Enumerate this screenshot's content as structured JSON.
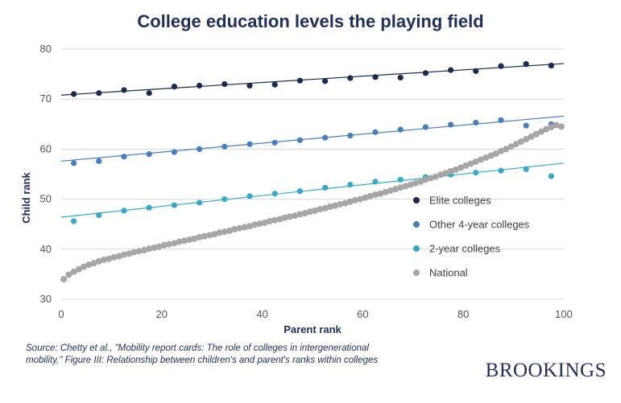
{
  "title": "College education levels the playing field",
  "source_text": "Source: Chetty et al., \"Mobility report cards: The role of colleges in intergenerational mobility,\" Figure III: Relationship between children's and parent's ranks within colleges",
  "brand": "BROOKINGS",
  "chart_data": {
    "type": "scatter",
    "title": "College education levels the playing field",
    "xlabel": "Parent rank",
    "ylabel": "Child rank",
    "xlim": [
      0,
      100
    ],
    "ylim": [
      30,
      80
    ],
    "xticks": [
      0,
      20,
      40,
      60,
      80,
      100
    ],
    "yticks": [
      30,
      40,
      50,
      60,
      70,
      80
    ],
    "grid": "horizontal",
    "legend_position": "right",
    "series": [
      {
        "name": "Elite colleges",
        "color": "#1b2a4e",
        "x": [
          2.5,
          7.5,
          12.5,
          17.5,
          22.5,
          27.5,
          32.5,
          37.5,
          42.5,
          47.5,
          52.5,
          57.5,
          62.5,
          67.5,
          72.5,
          77.5,
          82.5,
          87.5,
          92.5,
          97.5
        ],
        "y": [
          71.0,
          71.2,
          71.8,
          71.2,
          72.5,
          72.7,
          73.0,
          72.7,
          72.9,
          73.7,
          73.6,
          74.2,
          74.4,
          74.3,
          75.2,
          75.8,
          75.6,
          76.6,
          77.0,
          76.7
        ],
        "fit": [
          70.8,
          77.1
        ]
      },
      {
        "name": "Other 4-year colleges",
        "color": "#4a7ebb",
        "x": [
          2.5,
          7.5,
          12.5,
          17.5,
          22.5,
          27.5,
          32.5,
          37.5,
          42.5,
          47.5,
          52.5,
          57.5,
          62.5,
          67.5,
          72.5,
          77.5,
          82.5,
          87.5,
          92.5,
          97.5
        ],
        "y": [
          57.2,
          57.6,
          58.5,
          59.0,
          59.4,
          60.0,
          60.5,
          61.0,
          61.3,
          61.8,
          62.3,
          62.7,
          63.4,
          63.9,
          64.4,
          64.9,
          65.3,
          65.8,
          64.7,
          65.0
        ],
        "fit": [
          57.6,
          66.6
        ]
      },
      {
        "name": "2-year colleges",
        "color": "#3aa7c7",
        "x": [
          2.5,
          7.5,
          12.5,
          17.5,
          22.5,
          27.5,
          32.5,
          37.5,
          42.5,
          47.5,
          52.5,
          57.5,
          62.5,
          67.5,
          72.5,
          77.5,
          82.5,
          87.5,
          92.5,
          97.5
        ],
        "y": [
          45.6,
          46.8,
          47.7,
          48.3,
          48.8,
          49.3,
          50.0,
          50.6,
          51.1,
          51.6,
          52.3,
          52.9,
          53.5,
          53.9,
          54.4,
          54.9,
          55.3,
          55.7,
          56.0,
          54.6
        ],
        "fit": [
          46.4,
          57.2
        ]
      },
      {
        "name": "National",
        "color": "#a6a6a6",
        "x_start": 0.5,
        "x_step": 1,
        "y": [
          34.0,
          34.9,
          35.5,
          36.0,
          36.5,
          36.9,
          37.2,
          37.6,
          37.9,
          38.1,
          38.4,
          38.6,
          38.9,
          39.1,
          39.4,
          39.6,
          39.8,
          40.1,
          40.3,
          40.5,
          40.8,
          41.0,
          41.2,
          41.5,
          41.7,
          41.9,
          42.1,
          42.4,
          42.6,
          42.8,
          43.0,
          43.3,
          43.5,
          43.7,
          44.0,
          44.2,
          44.4,
          44.6,
          44.9,
          45.1,
          45.3,
          45.6,
          45.8,
          46.0,
          46.3,
          46.5,
          46.7,
          47.0,
          47.2,
          47.5,
          47.7,
          48.0,
          48.2,
          48.5,
          48.7,
          49.0,
          49.2,
          49.5,
          49.8,
          50.0,
          50.3,
          50.6,
          50.9,
          51.1,
          51.4,
          51.7,
          52.0,
          52.3,
          52.6,
          52.9,
          53.2,
          53.5,
          53.9,
          54.2,
          54.5,
          54.9,
          55.2,
          55.6,
          55.9,
          56.3,
          56.7,
          57.1,
          57.5,
          57.9,
          58.3,
          58.7,
          59.1,
          59.6,
          60.0,
          60.5,
          61.0,
          61.5,
          62.0,
          62.5,
          63.0,
          63.5,
          64.0,
          64.4,
          64.8,
          64.5
        ]
      }
    ]
  }
}
